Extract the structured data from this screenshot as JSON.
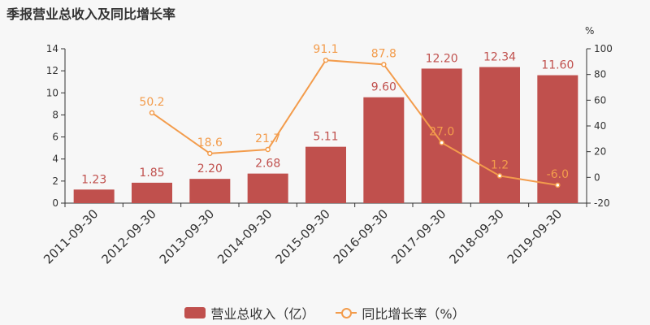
{
  "title": "季报营业总收入及同比增长率",
  "legend": {
    "bar_label": "营业总收入（亿）",
    "line_label": "同比增长率（%）"
  },
  "colors": {
    "bar": "#c0504d",
    "line": "#f39c4c",
    "axis_text": "#333333",
    "grid": "#e0e0e0"
  },
  "chart_data": {
    "type": "bar",
    "title": "季报营业总收入及同比增长率",
    "categories": [
      "2011-09-30",
      "2012-09-30",
      "2013-09-30",
      "2014-09-30",
      "2015-09-30",
      "2016-09-30",
      "2017-09-30",
      "2018-09-30",
      "2019-09-30"
    ],
    "series": [
      {
        "name": "营业总收入（亿）",
        "type": "bar",
        "axis": "left",
        "values": [
          1.23,
          1.85,
          2.2,
          2.68,
          5.11,
          9.6,
          12.2,
          12.34,
          11.6
        ],
        "labels": [
          "1.23",
          "1.85",
          "2.20",
          "2.68",
          "5.11",
          "9.60",
          "12.20",
          "12.34",
          "11.60"
        ]
      },
      {
        "name": "同比增长率（%）",
        "type": "line",
        "axis": "right",
        "values": [
          null,
          50.2,
          18.6,
          21.7,
          91.1,
          87.8,
          27.0,
          1.2,
          -6.0
        ],
        "labels": [
          null,
          "50.2",
          "18.6",
          "21.7",
          "91.1",
          "87.8",
          "27.0",
          "1.2",
          "-6.0"
        ]
      }
    ],
    "y_left": {
      "ylim": [
        0,
        14
      ],
      "ticks": [
        "0",
        "2",
        "4",
        "6",
        "8",
        "10",
        "12",
        "14"
      ]
    },
    "y_right": {
      "ylim": [
        -20,
        100
      ],
      "ticks": [
        "-20",
        "0",
        "20",
        "40",
        "60",
        "80",
        "100"
      ],
      "unit": "%"
    },
    "grid": false,
    "legend_position": "bottom"
  }
}
